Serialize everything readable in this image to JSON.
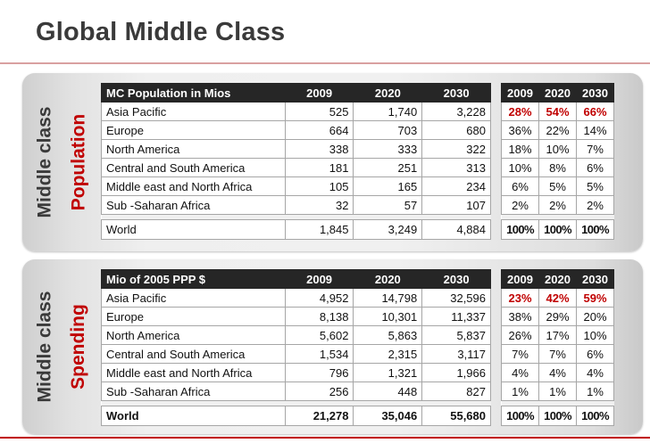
{
  "title": "Global Middle Class",
  "population": {
    "side_label": "Middle class",
    "side_sublabel": "Population",
    "header": [
      "MC Population in Mios",
      "2009",
      "2020",
      "2030"
    ],
    "share_header": [
      "2009",
      "2020",
      "2030"
    ],
    "rows": [
      {
        "region": "Asia Pacific",
        "values": [
          "525",
          "1,740",
          "3,228"
        ],
        "shares": [
          "28%",
          "54%",
          "66%"
        ]
      },
      {
        "region": "Europe",
        "values": [
          "664",
          "703",
          "680"
        ],
        "shares": [
          "36%",
          "22%",
          "14%"
        ]
      },
      {
        "region": "North America",
        "values": [
          "338",
          "333",
          "322"
        ],
        "shares": [
          "18%",
          "10%",
          "7%"
        ]
      },
      {
        "region": "Central and South America",
        "values": [
          "181",
          "251",
          "313"
        ],
        "shares": [
          "10%",
          "8%",
          "6%"
        ]
      },
      {
        "region": "Middle east and North Africa",
        "values": [
          "105",
          "165",
          "234"
        ],
        "shares": [
          "6%",
          "5%",
          "5%"
        ]
      },
      {
        "region": "Sub -Saharan Africa",
        "values": [
          "32",
          "57",
          "107"
        ],
        "shares": [
          "2%",
          "2%",
          "2%"
        ]
      }
    ],
    "total": {
      "region": "World",
      "values": [
        "1,845",
        "3,249",
        "4,884"
      ],
      "shares": [
        "100%",
        "100%",
        "100%"
      ]
    }
  },
  "spending": {
    "side_label": "Middle class",
    "side_sublabel": "Spending",
    "header": [
      "Mio of 2005 PPP $",
      "2009",
      "2020",
      "2030"
    ],
    "share_header": [
      "2009",
      "2020",
      "2030"
    ],
    "rows": [
      {
        "region": "Asia Pacific",
        "values": [
          "4,952",
          "14,798",
          "32,596"
        ],
        "shares": [
          "23%",
          "42%",
          "59%"
        ]
      },
      {
        "region": "Europe",
        "values": [
          "8,138",
          "10,301",
          "11,337"
        ],
        "shares": [
          "38%",
          "29%",
          "20%"
        ]
      },
      {
        "region": "North America",
        "values": [
          "5,602",
          "5,863",
          "5,837"
        ],
        "shares": [
          "26%",
          "17%",
          "10%"
        ]
      },
      {
        "region": "Central and South America",
        "values": [
          "1,534",
          "2,315",
          "3,117"
        ],
        "shares": [
          "7%",
          "7%",
          "6%"
        ]
      },
      {
        "region": "Middle east and North Africa",
        "values": [
          "796",
          "1,321",
          "1,966"
        ],
        "shares": [
          "4%",
          "4%",
          "4%"
        ]
      },
      {
        "region": "Sub -Saharan Africa",
        "values": [
          "256",
          "448",
          "827"
        ],
        "shares": [
          "1%",
          "1%",
          "1%"
        ]
      }
    ],
    "total": {
      "region": "World",
      "values": [
        "21,278",
        "35,046",
        "55,680"
      ],
      "shares": [
        "100%",
        "100%",
        "100%"
      ]
    }
  },
  "colors": {
    "accent": "#c00000",
    "header_bg": "#262626"
  }
}
